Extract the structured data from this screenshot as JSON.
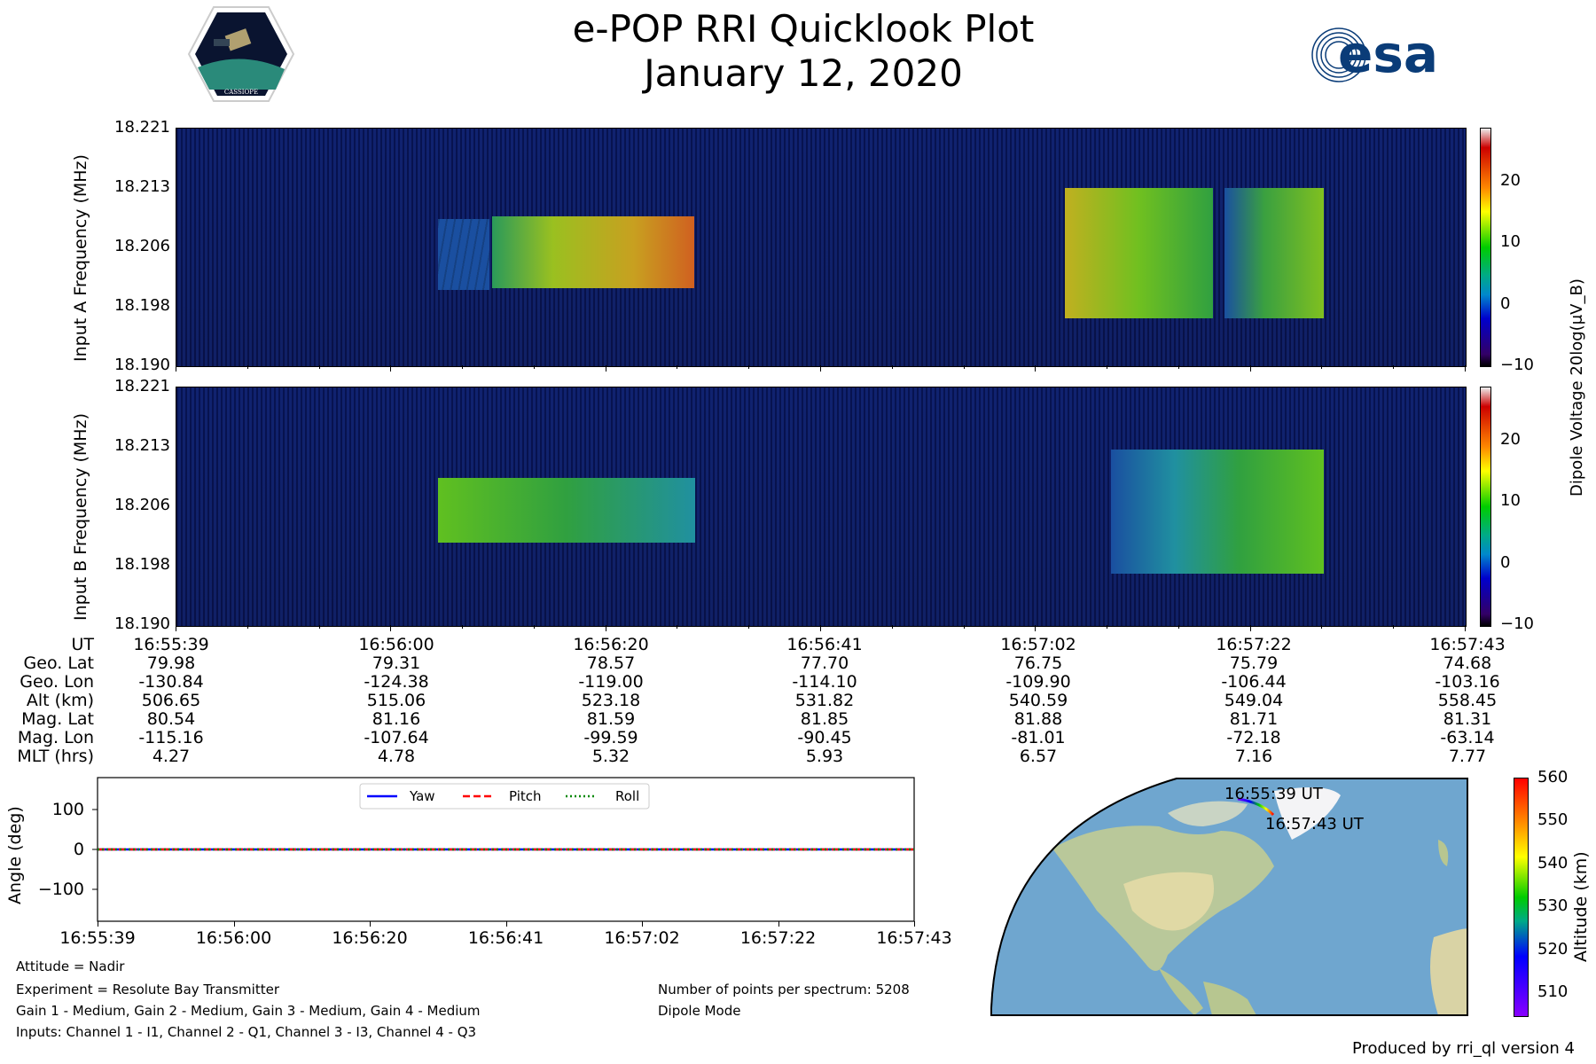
{
  "header": {
    "title": "e-POP RRI Quicklook Plot",
    "date": "January 12, 2020",
    "logo_left": "CASSIOPE",
    "logo_right": "esa"
  },
  "chart_data": [
    {
      "type": "heatmap",
      "name": "Input A",
      "ylabel": "Input A Frequency (MHz)",
      "yticks": [
        "18.221",
        "18.213",
        "18.206",
        "18.198",
        "18.190"
      ],
      "ylim": [
        18.19,
        18.221
      ],
      "xlim": [
        "16:55:39",
        "16:57:43"
      ],
      "signal_blocks": [
        {
          "t_start_s": 25,
          "t_end_s": 50,
          "f_low": 18.2,
          "f_high": 18.21,
          "level_db": 18
        },
        {
          "t_start_s": 85,
          "t_end_s": 100,
          "f_low": 18.196,
          "f_high": 18.213,
          "level_db": 14
        },
        {
          "t_start_s": 101,
          "t_end_s": 110,
          "f_low": 18.196,
          "f_high": 18.213,
          "level_db": 10
        }
      ]
    },
    {
      "type": "heatmap",
      "name": "Input B",
      "ylabel": "Input B Frequency (MHz)",
      "yticks": [
        "18.221",
        "18.213",
        "18.206",
        "18.198",
        "18.190"
      ],
      "ylim": [
        18.19,
        18.221
      ],
      "xlim": [
        "16:55:39",
        "16:57:43"
      ],
      "signal_blocks": [
        {
          "t_start_s": 32,
          "t_end_s": 63,
          "f_low": 18.201,
          "f_high": 18.209,
          "level_db": 10
        },
        {
          "t_start_s": 90,
          "t_end_s": 110,
          "f_low": 18.197,
          "f_high": 18.213,
          "level_db": 8
        }
      ]
    },
    {
      "type": "colorbar",
      "label": "Dipole Voltage 20log(μV_B)",
      "ticks": [
        "20",
        "10",
        "0",
        "−10"
      ],
      "range": [
        -12,
        28
      ]
    },
    {
      "type": "table",
      "row_labels": [
        "UT",
        "Geo. Lat",
        "Geo. Lon",
        "Alt (km)",
        "Mag. Lat",
        "Mag. Lon",
        "MLT (hrs)"
      ],
      "columns": [
        [
          "16:55:39",
          "79.98",
          "-130.84",
          "506.65",
          "80.54",
          "-115.16",
          "4.27"
        ],
        [
          "16:56:00",
          "79.31",
          "-124.38",
          "515.06",
          "81.16",
          "-107.64",
          "4.78"
        ],
        [
          "16:56:20",
          "78.57",
          "-119.00",
          "523.18",
          "81.59",
          "-99.59",
          "5.32"
        ],
        [
          "16:56:41",
          "77.70",
          "-114.10",
          "531.82",
          "81.85",
          "-90.45",
          "5.93"
        ],
        [
          "16:57:02",
          "76.75",
          "-109.90",
          "540.59",
          "81.88",
          "-81.01",
          "6.57"
        ],
        [
          "16:57:22",
          "75.79",
          "-106.44",
          "549.04",
          "81.71",
          "-72.18",
          "7.16"
        ],
        [
          "16:57:43",
          "74.68",
          "-103.16",
          "558.45",
          "81.31",
          "-63.14",
          "7.77"
        ]
      ]
    },
    {
      "type": "line",
      "name": "Attitude",
      "ylabel": "Angle (deg)",
      "yticks": [
        "100",
        "0",
        "−100"
      ],
      "ylim": [
        -180,
        180
      ],
      "xticks": [
        "16:55:39",
        "16:56:00",
        "16:56:20",
        "16:56:41",
        "16:57:02",
        "16:57:22",
        "16:57:43"
      ],
      "series": [
        {
          "name": "Yaw",
          "color": "#0000ff",
          "values": [
            0,
            0,
            0,
            0,
            0,
            0,
            0
          ]
        },
        {
          "name": "Pitch",
          "color": "#ff0000",
          "values": [
            0,
            0,
            0,
            0,
            0,
            0,
            0
          ]
        },
        {
          "name": "Roll",
          "color": "#008000",
          "values": [
            0,
            0,
            0,
            0,
            0,
            0,
            0
          ]
        }
      ]
    },
    {
      "type": "map",
      "start_label": "16:55:39 UT",
      "end_label": "16:57:43 UT",
      "colorbar_label": "Altitude (km)",
      "colorbar_ticks": [
        "560",
        "550",
        "540",
        "530",
        "520",
        "510"
      ],
      "range": [
        505,
        560
      ]
    }
  ],
  "notes": {
    "attitude": "Attitude = Nadir",
    "experiment": "Experiment = Resolute Bay Transmitter",
    "gain": "Gain 1 - Medium, Gain 2 - Medium, Gain 3 - Medium, Gain 4 - Medium",
    "inputs": "Inputs: Channel 1 - I1, Channel 2 - Q1, Channel 3 - I3, Channel 4 - Q3",
    "points": "Number of points per spectrum: 5208",
    "mode": "Dipole Mode",
    "produced": "Produced by rri_ql version 4"
  }
}
